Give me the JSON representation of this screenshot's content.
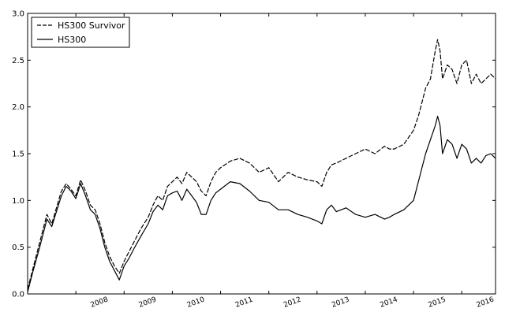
{
  "chart_data": {
    "type": "line",
    "xlabel": "",
    "ylabel": "",
    "xlim": [
      2007.0,
      2016.7
    ],
    "ylim": [
      0.0,
      3.0
    ],
    "yticks": [
      "0.0",
      "0.5",
      "1.0",
      "1.5",
      "2.0",
      "2.5",
      "3.0"
    ],
    "xticks": [
      "2008",
      "2009",
      "2010",
      "2011",
      "2012",
      "2013",
      "2014",
      "2015",
      "2016"
    ],
    "grid": false,
    "legend_position": "top-left",
    "series": [
      {
        "name": "HS300 Survivor",
        "color": "#000000",
        "dash": "dashed",
        "x": [
          2007.0,
          2007.1,
          2007.25,
          2007.4,
          2007.5,
          2007.7,
          2007.8,
          2007.9,
          2008.0,
          2008.1,
          2008.2,
          2008.3,
          2008.4,
          2008.5,
          2008.6,
          2008.7,
          2008.8,
          2008.9,
          2009.0,
          2009.1,
          2009.2,
          2009.35,
          2009.5,
          2009.6,
          2009.7,
          2009.8,
          2009.9,
          2010.0,
          2010.1,
          2010.2,
          2010.3,
          2010.4,
          2010.5,
          2010.6,
          2010.7,
          2010.8,
          2010.9,
          2011.0,
          2011.2,
          2011.4,
          2011.6,
          2011.8,
          2012.0,
          2012.2,
          2012.4,
          2012.6,
          2012.8,
          2013.0,
          2013.1,
          2013.2,
          2013.3,
          2013.4,
          2013.6,
          2013.8,
          2014.0,
          2014.2,
          2014.4,
          2014.5,
          2014.6,
          2014.8,
          2015.0,
          2015.1,
          2015.25,
          2015.35,
          2015.45,
          2015.5,
          2015.55,
          2015.6,
          2015.7,
          2015.8,
          2015.9,
          2016.0,
          2016.1,
          2016.2,
          2016.3,
          2016.4,
          2016.5,
          2016.6,
          2016.7
        ],
        "y": [
          0.05,
          0.25,
          0.55,
          0.85,
          0.75,
          1.1,
          1.18,
          1.12,
          1.05,
          1.22,
          1.1,
          0.95,
          0.9,
          0.75,
          0.55,
          0.4,
          0.3,
          0.22,
          0.35,
          0.45,
          0.55,
          0.7,
          0.82,
          0.95,
          1.05,
          1.0,
          1.15,
          1.2,
          1.25,
          1.18,
          1.3,
          1.25,
          1.2,
          1.1,
          1.05,
          1.2,
          1.3,
          1.35,
          1.42,
          1.45,
          1.4,
          1.3,
          1.35,
          1.2,
          1.3,
          1.25,
          1.22,
          1.2,
          1.15,
          1.3,
          1.38,
          1.4,
          1.45,
          1.5,
          1.55,
          1.5,
          1.58,
          1.55,
          1.55,
          1.6,
          1.75,
          1.9,
          2.2,
          2.3,
          2.6,
          2.72,
          2.6,
          2.3,
          2.45,
          2.4,
          2.25,
          2.45,
          2.5,
          2.25,
          2.35,
          2.25,
          2.3,
          2.35,
          2.3
        ]
      },
      {
        "name": "HS300",
        "color": "#000000",
        "dash": "solid",
        "x": [
          2007.0,
          2007.1,
          2007.25,
          2007.4,
          2007.5,
          2007.7,
          2007.8,
          2007.9,
          2008.0,
          2008.1,
          2008.2,
          2008.3,
          2008.4,
          2008.5,
          2008.6,
          2008.7,
          2008.8,
          2008.9,
          2009.0,
          2009.1,
          2009.2,
          2009.35,
          2009.5,
          2009.6,
          2009.7,
          2009.8,
          2009.9,
          2010.0,
          2010.1,
          2010.2,
          2010.3,
          2010.4,
          2010.5,
          2010.6,
          2010.7,
          2010.8,
          2010.9,
          2011.0,
          2011.2,
          2011.4,
          2011.6,
          2011.8,
          2012.0,
          2012.2,
          2012.4,
          2012.6,
          2012.8,
          2013.0,
          2013.1,
          2013.2,
          2013.3,
          2013.4,
          2013.6,
          2013.8,
          2014.0,
          2014.2,
          2014.4,
          2014.5,
          2014.6,
          2014.8,
          2015.0,
          2015.1,
          2015.25,
          2015.35,
          2015.45,
          2015.5,
          2015.55,
          2015.6,
          2015.7,
          2015.8,
          2015.9,
          2016.0,
          2016.1,
          2016.2,
          2016.3,
          2016.4,
          2016.5,
          2016.6,
          2016.7
        ],
        "y": [
          0.02,
          0.22,
          0.5,
          0.8,
          0.72,
          1.05,
          1.15,
          1.1,
          1.02,
          1.18,
          1.05,
          0.9,
          0.85,
          0.7,
          0.5,
          0.35,
          0.25,
          0.15,
          0.3,
          0.38,
          0.48,
          0.62,
          0.75,
          0.88,
          0.95,
          0.9,
          1.05,
          1.08,
          1.1,
          1.0,
          1.12,
          1.05,
          0.98,
          0.85,
          0.85,
          1.0,
          1.08,
          1.12,
          1.2,
          1.18,
          1.1,
          1.0,
          0.98,
          0.9,
          0.9,
          0.85,
          0.82,
          0.78,
          0.75,
          0.9,
          0.95,
          0.88,
          0.92,
          0.85,
          0.82,
          0.85,
          0.8,
          0.82,
          0.85,
          0.9,
          1.0,
          1.2,
          1.5,
          1.65,
          1.8,
          1.9,
          1.8,
          1.5,
          1.65,
          1.6,
          1.45,
          1.6,
          1.55,
          1.4,
          1.45,
          1.4,
          1.48,
          1.5,
          1.45
        ]
      }
    ]
  }
}
